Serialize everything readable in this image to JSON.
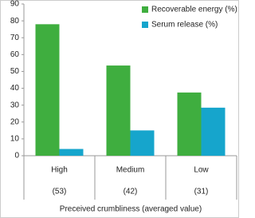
{
  "chart_data": {
    "type": "bar",
    "categories": [
      "High",
      "Medium",
      "Low"
    ],
    "category_notes": [
      "(53)",
      "(42)",
      "(31)"
    ],
    "x_label": "Preceived crumbliness (averaged value)",
    "series": [
      {
        "name": "Recoverable energy (%)",
        "color": "#3fae3f",
        "values": [
          78,
          53.5,
          37.5
        ]
      },
      {
        "name": "Serum release (%)",
        "color": "#16a5cc",
        "values": [
          4,
          15,
          28.5
        ]
      }
    ],
    "ylim": [
      0,
      90
    ],
    "yticks": [
      0,
      10,
      20,
      30,
      40,
      50,
      60,
      70,
      80,
      90
    ],
    "grid": false,
    "legend": "top-right"
  }
}
